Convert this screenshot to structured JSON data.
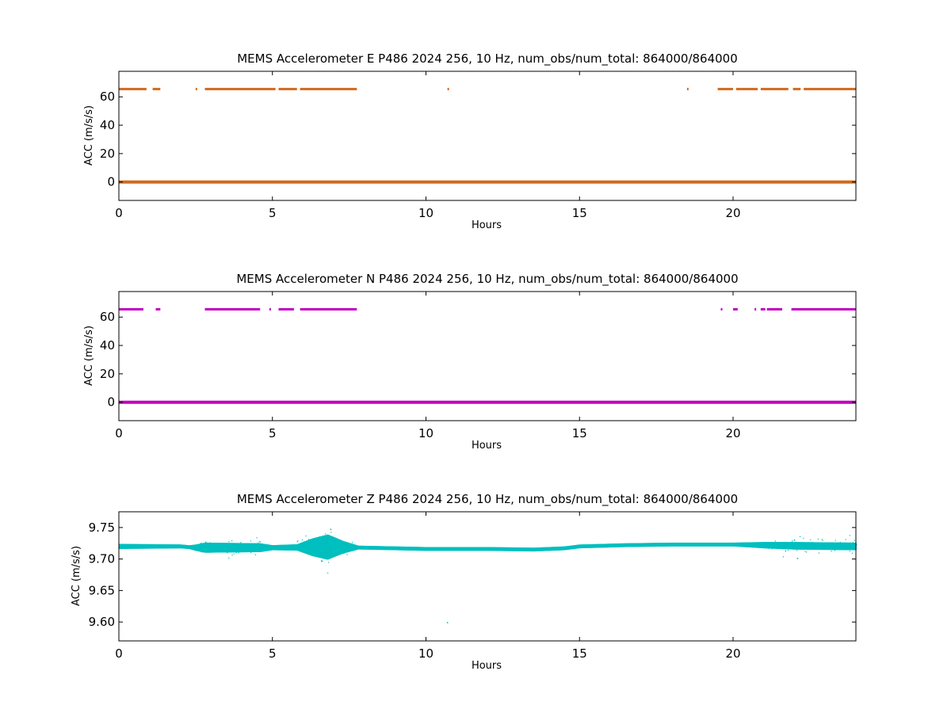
{
  "chart_data": [
    {
      "type": "scatter",
      "title": "MEMS Accelerometer E P486 2024 256, 10 Hz, num_obs/num_total: 864000/864000",
      "xlabel": "Hours",
      "ylabel": "ACC (m/s/s)",
      "xlim": [
        0,
        24
      ],
      "ylim": [
        -13,
        78
      ],
      "xticks": [
        0,
        5,
        10,
        15,
        20
      ],
      "yticks": [
        0,
        20,
        40,
        60
      ],
      "grid": false,
      "color": "#d2691e",
      "baseline": {
        "value": 0.0,
        "x_range": [
          0,
          24
        ]
      },
      "upper_level": {
        "value": 65.5,
        "segments": [
          [
            0,
            0.9
          ],
          [
            1.1,
            1.35
          ],
          [
            2.5,
            2.55
          ],
          [
            2.8,
            5.1
          ],
          [
            5.2,
            5.8
          ],
          [
            5.9,
            7.75
          ],
          [
            10.7,
            10.75
          ],
          [
            18.5,
            18.55
          ],
          [
            19.5,
            20.0
          ],
          [
            20.1,
            20.8
          ],
          [
            20.9,
            21.8
          ],
          [
            21.95,
            22.2
          ],
          [
            22.3,
            24
          ]
        ]
      }
    },
    {
      "type": "scatter",
      "title": "MEMS Accelerometer N P486 2024 256, 10 Hz, num_obs/num_total: 864000/864000",
      "xlabel": "Hours",
      "ylabel": "ACC (m/s/s)",
      "xlim": [
        0,
        24
      ],
      "ylim": [
        -13,
        78
      ],
      "xticks": [
        0,
        5,
        10,
        15,
        20
      ],
      "yticks": [
        0,
        20,
        40,
        60
      ],
      "grid": false,
      "color": "#bf00bf",
      "baseline": {
        "value": 0.0,
        "x_range": [
          0,
          24
        ]
      },
      "upper_level": {
        "value": 65.5,
        "segments": [
          [
            0,
            0.8
          ],
          [
            1.2,
            1.35
          ],
          [
            2.8,
            4.6
          ],
          [
            4.9,
            4.95
          ],
          [
            5.2,
            5.7
          ],
          [
            5.9,
            7.75
          ],
          [
            19.6,
            19.65
          ],
          [
            20.0,
            20.15
          ],
          [
            20.7,
            20.75
          ],
          [
            20.9,
            21.05
          ],
          [
            21.1,
            21.6
          ],
          [
            21.9,
            24
          ]
        ]
      }
    },
    {
      "type": "scatter",
      "title": "MEMS Accelerometer Z P486 2024 256, 10 Hz, num_obs/num_total: 864000/864000",
      "xlabel": "Hours",
      "ylabel": "ACC (m/s/s)",
      "xlim": [
        0,
        24
      ],
      "ylim": [
        9.57,
        9.775
      ],
      "xticks": [
        0,
        5,
        10,
        15,
        20
      ],
      "yticks": [
        9.6,
        9.65,
        9.7,
        9.75
      ],
      "yticklabels": [
        "9.60",
        "9.65",
        "9.70",
        "9.75"
      ],
      "grid": false,
      "color": "#00bfbf",
      "trend": [
        [
          0,
          9.72
        ],
        [
          2,
          9.72
        ],
        [
          2.5,
          9.718
        ],
        [
          5,
          9.718
        ],
        [
          7,
          9.719
        ],
        [
          8,
          9.718
        ],
        [
          10,
          9.716
        ],
        [
          12,
          9.716
        ],
        [
          13.5,
          9.715
        ],
        [
          14.5,
          9.717
        ],
        [
          15,
          9.72
        ],
        [
          16.5,
          9.722
        ],
        [
          18,
          9.723
        ],
        [
          20,
          9.723
        ],
        [
          22,
          9.721
        ],
        [
          24,
          9.72
        ]
      ],
      "noise_envelope": [
        [
          0,
          0.004
        ],
        [
          2.3,
          0.003
        ],
        [
          2.8,
          0.008
        ],
        [
          4.6,
          0.007
        ],
        [
          5.0,
          0.004
        ],
        [
          5.8,
          0.005
        ],
        [
          6.3,
          0.014
        ],
        [
          6.8,
          0.02
        ],
        [
          7.3,
          0.01
        ],
        [
          7.8,
          0.003
        ],
        [
          15,
          0.003
        ],
        [
          20,
          0.003
        ],
        [
          21,
          0.005
        ],
        [
          22,
          0.006
        ],
        [
          23,
          0.006
        ],
        [
          24,
          0.006
        ]
      ],
      "outliers": [
        [
          6.9,
          9.747
        ],
        [
          6.6,
          9.697
        ],
        [
          10.7,
          9.599
        ],
        [
          22.1,
          9.701
        ],
        [
          22.0,
          9.73
        ]
      ]
    }
  ]
}
